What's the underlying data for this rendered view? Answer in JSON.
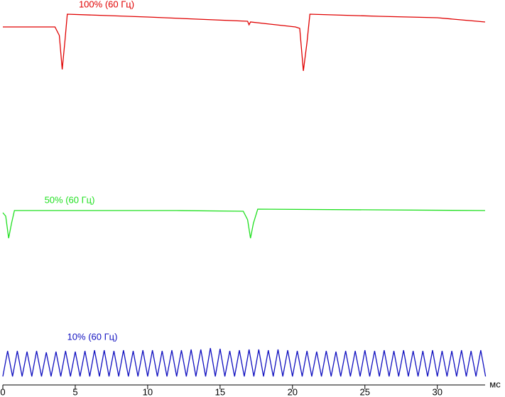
{
  "chart_data": {
    "type": "line",
    "x_label": "мс",
    "xlim": [
      0,
      33.3
    ],
    "xticks": [
      0,
      5,
      10,
      15,
      20,
      25,
      30
    ],
    "series": [
      {
        "name": "100% (60 Гц)",
        "color": "#e00000",
        "x": [
          0,
          3.6,
          3.9,
          4.1,
          4.3,
          4.45,
          10,
          16.9,
          17.0,
          17.1,
          20.2,
          20.5,
          20.75,
          21.0,
          21.2,
          26,
          30,
          33.3
        ],
        "values": [
          72,
          72,
          60,
          12,
          55,
          90,
          86,
          80,
          75,
          79,
          72,
          70,
          10,
          50,
          90,
          87,
          85,
          79
        ]
      },
      {
        "name": "50% (60 Гц)",
        "color": "#20e020",
        "x": [
          0,
          0.2,
          0.4,
          0.6,
          0.8,
          12,
          16.6,
          16.9,
          17.1,
          17.3,
          17.6,
          33.3
        ],
        "values": [
          45,
          40,
          9,
          30,
          48,
          48,
          47,
          35,
          9,
          30,
          50,
          48
        ]
      },
      {
        "name": "10% (60 Гц)",
        "color": "#1010c0",
        "x": [
          0,
          0.33,
          0.67,
          1,
          1.33,
          1.67,
          2,
          2.33,
          2.67,
          3,
          3.33,
          3.67,
          4,
          4.33,
          4.67,
          5,
          5.33,
          5.67,
          6,
          6.33,
          6.67,
          7,
          7.33,
          7.67,
          8,
          8.33,
          8.67,
          9,
          9.33,
          9.67,
          10,
          10.33,
          10.67,
          11,
          11.33,
          11.67,
          12,
          12.33,
          12.67,
          13,
          13.33,
          13.67,
          14,
          14.33,
          14.67,
          15,
          15.33,
          15.67,
          16,
          16.33,
          16.67,
          17,
          17.33,
          17.67,
          18,
          18.33,
          18.67,
          19,
          19.33,
          19.67,
          20,
          20.33,
          20.67,
          21,
          21.33,
          21.67,
          22,
          22.33,
          22.67,
          23,
          23.33,
          23.67,
          24,
          24.33,
          24.67,
          25,
          25.33,
          25.67,
          26,
          26.33,
          26.67,
          27,
          27.33,
          27.67,
          28,
          28.33,
          28.67,
          29,
          29.33,
          29.67,
          30,
          30.33,
          30.67,
          31,
          31.33,
          31.67,
          32,
          32.33,
          32.67,
          33,
          33.33
        ],
        "values": [
          12,
          48,
          12,
          48,
          12,
          47,
          12,
          48,
          12,
          46,
          12,
          47,
          12,
          48,
          12,
          47,
          12,
          48,
          12,
          49,
          12,
          49,
          12,
          48,
          12,
          49,
          12,
          48,
          12,
          49,
          12,
          49,
          12,
          48,
          12,
          49,
          12,
          49,
          12,
          50,
          12,
          50,
          12,
          52,
          12,
          51,
          12,
          48,
          12,
          49,
          12,
          50,
          12,
          50,
          12,
          49,
          12,
          50,
          12,
          49,
          12,
          48,
          12,
          48,
          12,
          47,
          12,
          48,
          12,
          47,
          12,
          48,
          12,
          48,
          12,
          49,
          12,
          48,
          12,
          49,
          12,
          48,
          12,
          49,
          12,
          48,
          12,
          48,
          12,
          49,
          12,
          48,
          12,
          48,
          12,
          49,
          12,
          48,
          12,
          49,
          12
        ]
      }
    ]
  }
}
